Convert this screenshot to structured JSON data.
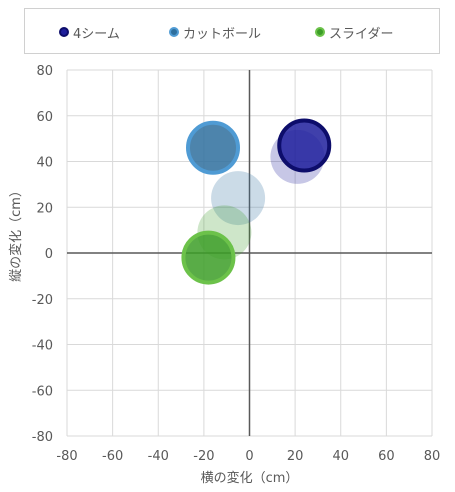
{
  "chart_data": {
    "type": "scatter",
    "xlabel": "横の変化（cm）",
    "ylabel": "縦の変化（cm）",
    "xlim": [
      -80,
      80
    ],
    "ylim": [
      -80,
      80
    ],
    "xticks": [
      "-80",
      "-60",
      "-40",
      "-20",
      "0",
      "20",
      "40",
      "60",
      "80"
    ],
    "yticks": [
      "80",
      "60",
      "40",
      "20",
      "0",
      "-20",
      "-40",
      "-60",
      "-80"
    ],
    "grid": true,
    "legend_position": "top",
    "series": [
      {
        "name": "4シーム",
        "color": "#1f1f9c",
        "points": [
          {
            "x": 24,
            "y": 47,
            "faded": false
          },
          {
            "x": 21,
            "y": 42,
            "faded": true
          }
        ]
      },
      {
        "name": "カットボール",
        "color": "#2e6f9e",
        "points": [
          {
            "x": -16,
            "y": 46,
            "faded": false
          },
          {
            "x": -5,
            "y": 24,
            "faded": true
          }
        ]
      },
      {
        "name": "スライダー",
        "color": "#3c9d27",
        "points": [
          {
            "x": -18,
            "y": -2,
            "faded": false
          },
          {
            "x": -11,
            "y": 9,
            "faded": true
          }
        ]
      }
    ]
  }
}
